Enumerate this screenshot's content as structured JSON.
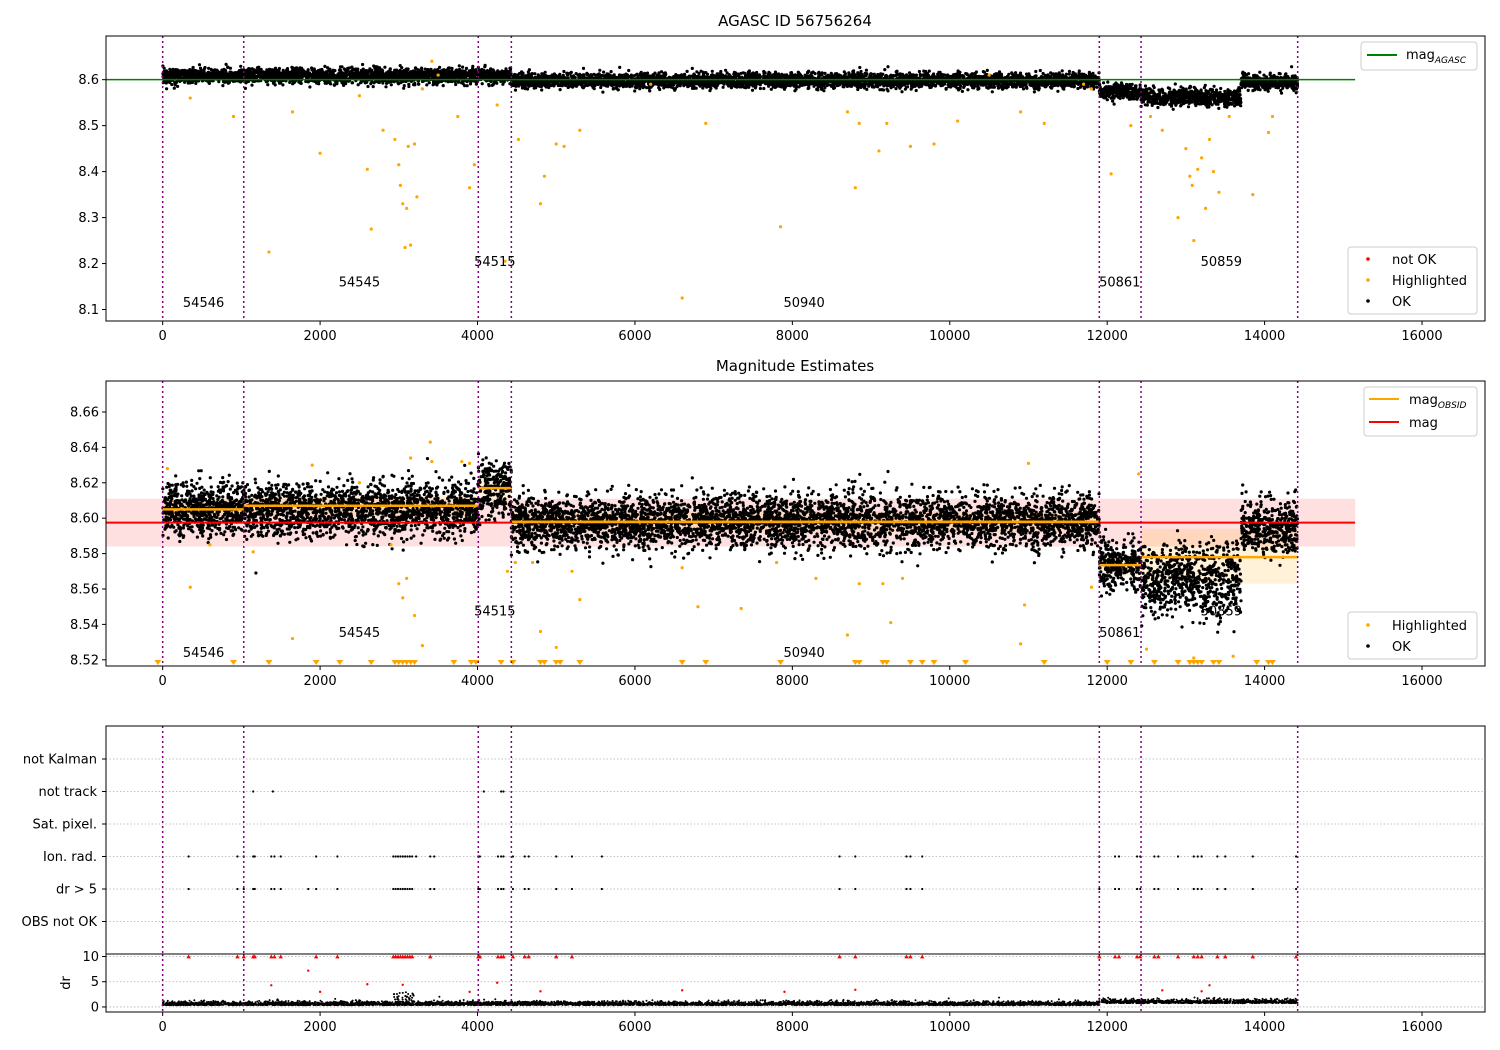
{
  "chart_data": [
    {
      "type": "scatter",
      "title": "AGASC ID 56756264",
      "xlim": [
        -720,
        16800
      ],
      "ylim": [
        8.075,
        8.695
      ],
      "xticks": [
        0,
        2000,
        4000,
        6000,
        8000,
        10000,
        12000,
        14000,
        16000
      ],
      "yticks": [
        8.1,
        8.2,
        8.3,
        8.4,
        8.5,
        8.6
      ],
      "obs_boundaries": [
        0,
        1030,
        4010,
        4430,
        11900,
        12430,
        14420
      ],
      "obsid_labels": [
        {
          "text": "54546",
          "x": 520,
          "y": 8.105
        },
        {
          "text": "54545",
          "x": 2500,
          "y": 8.15
        },
        {
          "text": "54515",
          "x": 4220,
          "y": 8.195
        },
        {
          "text": "50940",
          "x": 8150,
          "y": 8.105
        },
        {
          "text": "50861",
          "x": 12160,
          "y": 8.15
        },
        {
          "text": "50859",
          "x": 13450,
          "y": 8.195
        }
      ],
      "mag_agasc": {
        "value": 8.6,
        "x": [
          -720,
          15150
        ],
        "color": "#008000"
      },
      "ok_segments": [
        {
          "x": [
            0,
            4430
          ],
          "mean": 8.608,
          "spread": 0.008
        },
        {
          "x": [
            4430,
            11900
          ],
          "mean": 8.598,
          "spread": 0.008
        },
        {
          "x": [
            11900,
            12430
          ],
          "mean": 8.574,
          "spread": 0.008
        },
        {
          "x": [
            12430,
            13700
          ],
          "mean": 8.562,
          "spread": 0.009
        },
        {
          "x": [
            13700,
            14420
          ],
          "mean": 8.594,
          "spread": 0.008
        }
      ],
      "highlighted_points": [
        [
          350,
          8.56
        ],
        [
          900,
          8.52
        ],
        [
          1350,
          8.225
        ],
        [
          1650,
          8.53
        ],
        [
          2000,
          8.44
        ],
        [
          2600,
          8.405
        ],
        [
          2650,
          8.275
        ],
        [
          2800,
          8.49
        ],
        [
          2950,
          8.47
        ],
        [
          3000,
          8.415
        ],
        [
          3020,
          8.37
        ],
        [
          3050,
          8.33
        ],
        [
          3080,
          8.235
        ],
        [
          3100,
          8.32
        ],
        [
          3120,
          8.455
        ],
        [
          3150,
          8.24
        ],
        [
          3200,
          8.46
        ],
        [
          3230,
          8.345
        ],
        [
          3300,
          8.58
        ],
        [
          3420,
          8.64
        ],
        [
          3750,
          8.52
        ],
        [
          3900,
          8.365
        ],
        [
          3960,
          8.415
        ],
        [
          4250,
          8.545
        ],
        [
          4350,
          8.205
        ],
        [
          4520,
          8.47
        ],
        [
          4800,
          8.33
        ],
        [
          4850,
          8.39
        ],
        [
          5000,
          8.46
        ],
        [
          5100,
          8.455
        ],
        [
          5300,
          8.49
        ],
        [
          6600,
          8.125
        ],
        [
          6900,
          8.505
        ],
        [
          7850,
          8.28
        ],
        [
          8700,
          8.53
        ],
        [
          8800,
          8.365
        ],
        [
          8850,
          8.505
        ],
        [
          9100,
          8.445
        ],
        [
          9200,
          8.505
        ],
        [
          9500,
          8.455
        ],
        [
          9800,
          8.46
        ],
        [
          10100,
          8.51
        ],
        [
          10900,
          8.53
        ],
        [
          11200,
          8.505
        ],
        [
          11800,
          8.58
        ],
        [
          12050,
          8.395
        ],
        [
          12300,
          8.5
        ],
        [
          12550,
          8.52
        ],
        [
          12700,
          8.49
        ],
        [
          12900,
          8.3
        ],
        [
          13000,
          8.45
        ],
        [
          13050,
          8.39
        ],
        [
          13080,
          8.37
        ],
        [
          13100,
          8.25
        ],
        [
          13150,
          8.405
        ],
        [
          13200,
          8.43
        ],
        [
          13250,
          8.32
        ],
        [
          13300,
          8.47
        ],
        [
          13350,
          8.4
        ],
        [
          13420,
          8.355
        ],
        [
          13550,
          8.52
        ],
        [
          13850,
          8.35
        ],
        [
          14050,
          8.485
        ],
        [
          14100,
          8.52
        ],
        [
          2500,
          8.565
        ],
        [
          3500,
          8.61
        ],
        [
          6200,
          8.59
        ],
        [
          10500,
          8.61
        ],
        [
          11700,
          8.59
        ]
      ],
      "legend_top": [
        {
          "label": "mag",
          "subscript": "AGASC",
          "color": "#008000"
        }
      ],
      "legend_bottom": [
        {
          "label": "not OK",
          "color": "#ff0000"
        },
        {
          "label": "Highlighted",
          "color": "#ffa500"
        },
        {
          "label": "OK",
          "color": "#000000"
        }
      ]
    },
    {
      "type": "scatter",
      "title": "Magnitude Estimates",
      "xlim": [
        -720,
        16800
      ],
      "ylim": [
        8.5165,
        8.6775
      ],
      "xticks": [
        0,
        2000,
        4000,
        6000,
        8000,
        10000,
        12000,
        14000,
        16000
      ],
      "yticks": [
        8.52,
        8.54,
        8.56,
        8.58,
        8.6,
        8.62,
        8.64,
        8.66
      ],
      "obs_boundaries": [
        0,
        1030,
        4010,
        4430,
        11900,
        12430,
        14420
      ],
      "obsid_labels": [
        {
          "text": "54546",
          "x": 520,
          "y": 8.5215
        },
        {
          "text": "54545",
          "x": 2500,
          "y": 8.533
        },
        {
          "text": "54515",
          "x": 4220,
          "y": 8.545
        },
        {
          "text": "50940",
          "x": 8150,
          "y": 8.5215
        },
        {
          "text": "50861",
          "x": 12160,
          "y": 8.533
        },
        {
          "text": "50859",
          "x": 13450,
          "y": 8.545
        }
      ],
      "mag": {
        "value": 8.5975,
        "band": [
          8.584,
          8.611
        ],
        "x": [
          -720,
          15150
        ],
        "color": "#ff0000"
      },
      "mag_obsid": [
        {
          "x": [
            0,
            1030
          ],
          "value": 8.605,
          "band": [
            8.599,
            8.611
          ]
        },
        {
          "x": [
            1030,
            4010
          ],
          "value": 8.607,
          "band": [
            8.601,
            8.613
          ]
        },
        {
          "x": [
            4010,
            4430
          ],
          "value": 8.617,
          "band": [
            8.61,
            8.624
          ]
        },
        {
          "x": [
            4430,
            11900
          ],
          "value": 8.598,
          "band": [
            8.592,
            8.604
          ]
        },
        {
          "x": [
            11900,
            12430
          ],
          "value": 8.5735,
          "band": [
            8.567,
            8.58
          ]
        },
        {
          "x": [
            12430,
            14420
          ],
          "value": 8.578,
          "band": [
            8.563,
            8.594
          ]
        }
      ],
      "ok_segments": [
        {
          "x": [
            0,
            4010
          ],
          "mean": 8.605,
          "spread": 0.0075
        },
        {
          "x": [
            4010,
            4430
          ],
          "mean": 8.617,
          "spread": 0.008
        },
        {
          "x": [
            4430,
            11900
          ],
          "mean": 8.598,
          "spread": 0.0075
        },
        {
          "x": [
            11900,
            12430
          ],
          "mean": 8.574,
          "spread": 0.007
        },
        {
          "x": [
            12430,
            13700
          ],
          "mean": 8.565,
          "spread": 0.01
        },
        {
          "x": [
            13700,
            14420
          ],
          "mean": 8.595,
          "spread": 0.008
        }
      ],
      "highlighted_points": [
        [
          60,
          8.628
        ],
        [
          350,
          8.561
        ],
        [
          600,
          8.585
        ],
        [
          1150,
          8.581
        ],
        [
          1650,
          8.532
        ],
        [
          1900,
          8.63
        ],
        [
          2500,
          8.62
        ],
        [
          2900,
          8.585
        ],
        [
          3000,
          8.563
        ],
        [
          3050,
          8.555
        ],
        [
          3100,
          8.566
        ],
        [
          3150,
          8.634
        ],
        [
          3200,
          8.545
        ],
        [
          3300,
          8.528
        ],
        [
          3400,
          8.643
        ],
        [
          3420,
          8.632
        ],
        [
          3800,
          8.632
        ],
        [
          4380,
          8.57
        ],
        [
          4480,
          8.575
        ],
        [
          4700,
          8.575
        ],
        [
          4800,
          8.536
        ],
        [
          5000,
          8.527
        ],
        [
          5200,
          8.57
        ],
        [
          5300,
          8.554
        ],
        [
          6600,
          8.572
        ],
        [
          6800,
          8.55
        ],
        [
          7350,
          8.549
        ],
        [
          7800,
          8.575
        ],
        [
          8300,
          8.566
        ],
        [
          8700,
          8.534
        ],
        [
          8850,
          8.563
        ],
        [
          9150,
          8.563
        ],
        [
          9250,
          8.541
        ],
        [
          9400,
          8.566
        ],
        [
          10900,
          8.529
        ],
        [
          10950,
          8.551
        ],
        [
          11000,
          8.631
        ],
        [
          11800,
          8.561
        ],
        [
          12400,
          8.625
        ],
        [
          12500,
          8.526
        ],
        [
          13100,
          8.521
        ],
        [
          13600,
          8.522
        ],
        [
          3900,
          8.631
        ]
      ],
      "below_range_markers": [
        -60,
        900,
        1350,
        1950,
        2250,
        2650,
        2950,
        3000,
        3050,
        3100,
        3150,
        3200,
        3700,
        3920,
        3980,
        4300,
        4450,
        4800,
        4850,
        5000,
        5050,
        5300,
        6600,
        6900,
        7850,
        8800,
        8850,
        9150,
        9200,
        9500,
        9650,
        9800,
        10200,
        11200,
        12000,
        12300,
        12600,
        12900,
        13050,
        13100,
        13150,
        13200,
        13350,
        13420,
        13900,
        14050,
        14100
      ],
      "legend_top": [
        {
          "label": "mag",
          "subscript": "OBSID",
          "color": "#ffa500"
        },
        {
          "label": "mag",
          "subscript": "",
          "color": "#ff0000"
        }
      ],
      "legend_bottom": [
        {
          "label": "Highlighted",
          "color": "#ffa500"
        },
        {
          "label": "OK",
          "color": "#000000"
        }
      ]
    },
    {
      "type": "scatter",
      "xlim": [
        -720,
        16800
      ],
      "obs_boundaries": [
        0,
        1030,
        4010,
        4430,
        11900,
        12430,
        14420
      ],
      "flag_rows": [
        "not Kalman",
        "not track",
        "Sat. pixel.",
        "Ion. rad.",
        "dr > 5",
        "OBS not OK"
      ],
      "flags": {
        "not track": [
          1150,
          1400,
          4080,
          4300,
          4330
        ],
        "Ion. rad.": [
          330,
          950,
          1030,
          1150,
          1170,
          1380,
          1420,
          1500,
          1950,
          2220,
          2930,
          2960,
          2990,
          3020,
          3050,
          3080,
          3110,
          3140,
          3170,
          3220,
          3400,
          3450,
          4010,
          4030,
          4260,
          4300,
          4330,
          4450,
          4600,
          4650,
          5000,
          5200,
          5580,
          8600,
          8800,
          9450,
          9500,
          9650,
          11900,
          12100,
          12150,
          12380,
          12420,
          12600,
          12650,
          12900,
          13100,
          13150,
          13200,
          13400,
          13500,
          13850,
          14400
        ],
        "dr > 5": [
          330,
          950,
          1030,
          1150,
          1170,
          1380,
          1420,
          1500,
          1850,
          1950,
          2220,
          2930,
          2960,
          2990,
          3020,
          3050,
          3080,
          3110,
          3140,
          3170,
          3400,
          3450,
          4010,
          4030,
          4260,
          4300,
          4330,
          4450,
          4600,
          4650,
          5000,
          5200,
          5580,
          8600,
          8800,
          9450,
          9500,
          9650,
          11900,
          12100,
          12150,
          12380,
          12420,
          12600,
          12650,
          12900,
          13100,
          13150,
          13200,
          13400,
          13500,
          13850,
          14400
        ]
      },
      "dr_panel": {
        "ylabel": "dr",
        "yticks": [
          0,
          5,
          10
        ],
        "ylim": [
          -1,
          10.5
        ],
        "capped_points": [
          330,
          950,
          1030,
          1150,
          1170,
          1380,
          1420,
          1500,
          1950,
          2220,
          2930,
          2960,
          2990,
          3020,
          3050,
          3080,
          3110,
          3140,
          3170,
          3400,
          4010,
          4030,
          4260,
          4300,
          4330,
          4450,
          4600,
          4650,
          5000,
          5200,
          8600,
          8800,
          9450,
          9500,
          9650,
          11900,
          12100,
          12150,
          12380,
          12420,
          12600,
          12650,
          12900,
          13100,
          13150,
          13200,
          13400,
          13500,
          13850,
          14400
        ],
        "red_points": [
          [
            1850,
            7.2
          ],
          [
            1380,
            4.3
          ],
          [
            2600,
            4.5
          ],
          [
            3050,
            4.4
          ],
          [
            3900,
            3.0
          ],
          [
            4800,
            3.1
          ],
          [
            6600,
            3.3
          ],
          [
            7900,
            3.0
          ],
          [
            8800,
            3.4
          ],
          [
            12700,
            3.3
          ],
          [
            13300,
            4.3
          ],
          [
            13200,
            3.1
          ],
          [
            4250,
            4.8
          ],
          [
            2000,
            3.0
          ]
        ],
        "trace_mean": 0.45
      }
    }
  ]
}
